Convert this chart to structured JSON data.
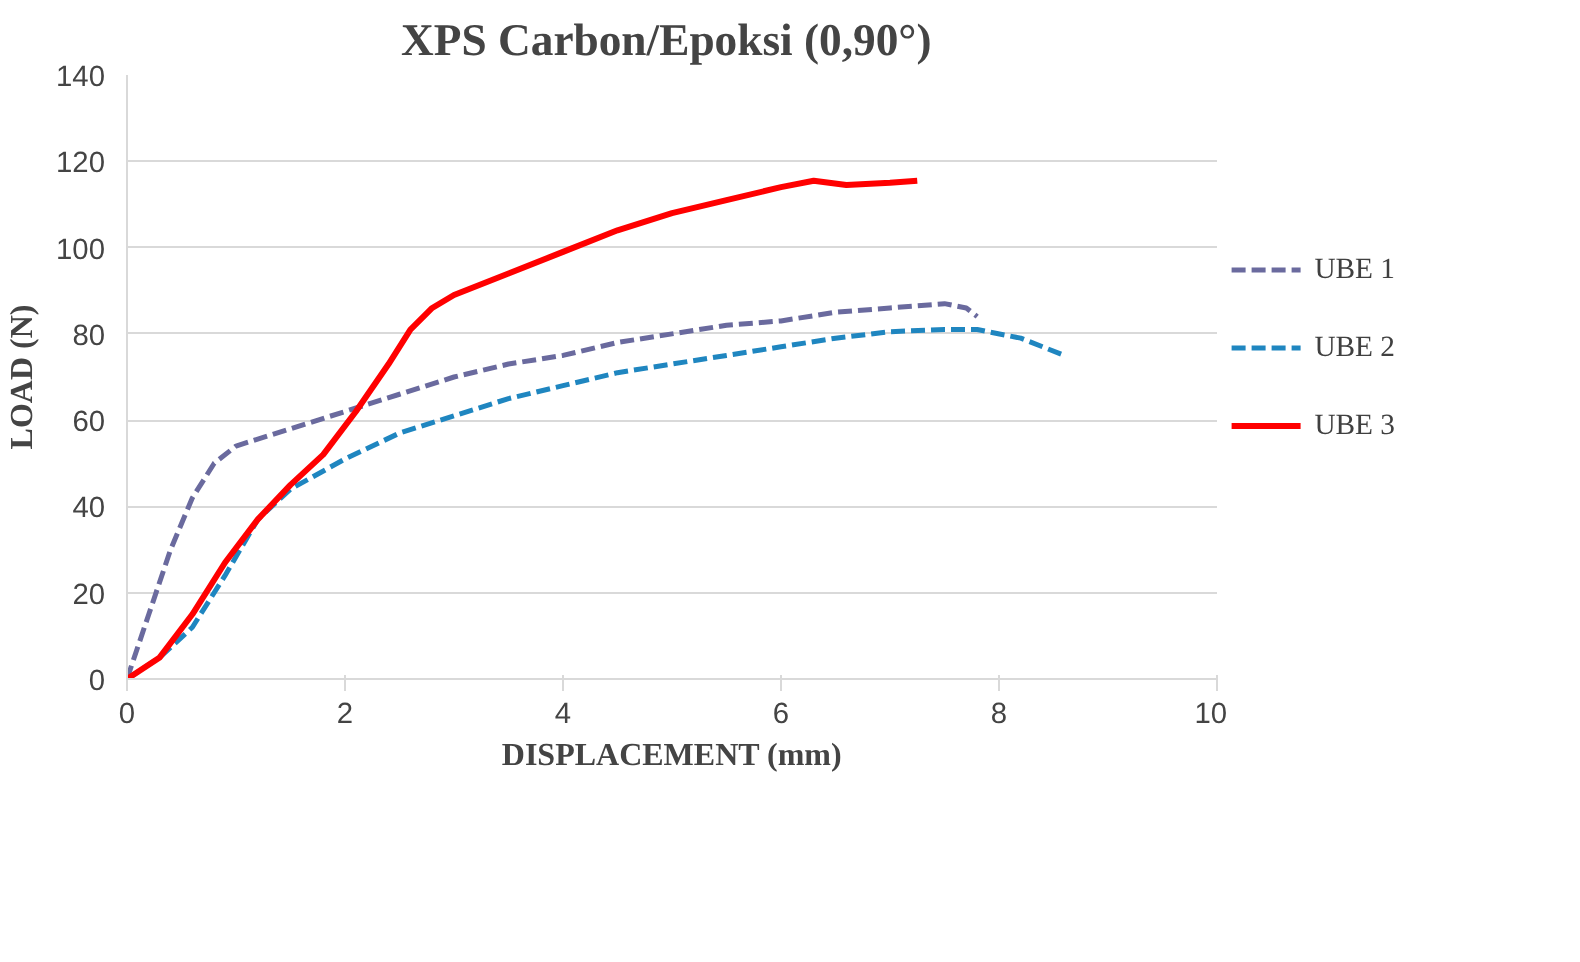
{
  "chart_data": {
    "type": "line",
    "title": "XPS Carbon/Epoksi  (0,90°)",
    "xlabel": "DISPLACEMENT (mm)",
    "ylabel": "LOAD (N)",
    "xlim": [
      0,
      10
    ],
    "xticks": [
      0,
      2,
      4,
      6,
      8,
      10
    ],
    "ylim": [
      0,
      140
    ],
    "yticks": [
      0,
      20,
      40,
      60,
      80,
      100,
      120,
      140
    ],
    "grid": "y",
    "legend": "right",
    "marker": "none",
    "series": [
      {
        "name": "UBE 1",
        "color": "#6a6a9e",
        "line_style": "dashed",
        "x": [
          0,
          0.2,
          0.4,
          0.6,
          0.8,
          1.0,
          1.5,
          2,
          2.5,
          3,
          3.5,
          4,
          4.5,
          5,
          5.5,
          6,
          6.5,
          7,
          7.5,
          7.7,
          7.8
        ],
        "values": [
          0,
          15,
          30,
          42,
          50,
          54,
          58,
          62,
          66,
          70,
          73,
          75,
          78,
          80,
          82,
          83,
          85,
          86,
          87,
          86,
          84
        ]
      },
      {
        "name": "UBE 2",
        "color": "#1f86c0",
        "line_style": "dashed",
        "x": [
          0,
          0.3,
          0.6,
          0.9,
          1.2,
          1.5,
          2,
          2.5,
          3,
          3.5,
          4,
          4.5,
          5,
          5.5,
          6,
          6.5,
          7,
          7.5,
          7.8,
          8.2,
          8.4,
          8.6
        ],
        "values": [
          0,
          5,
          12,
          24,
          37,
          44,
          51,
          57,
          61,
          65,
          68,
          71,
          73,
          75,
          77,
          79,
          80.5,
          81,
          81,
          79,
          77,
          75
        ]
      },
      {
        "name": "UBE 3",
        "color": "#ff0000",
        "line_style": "solid",
        "x": [
          0,
          0.3,
          0.6,
          0.9,
          1.2,
          1.5,
          1.8,
          2.1,
          2.4,
          2.6,
          2.8,
          3,
          3.5,
          4,
          4.5,
          5,
          5.5,
          6,
          6.3,
          6.6,
          7,
          7.25
        ],
        "values": [
          0,
          5,
          15,
          27,
          37,
          45,
          52,
          62,
          73,
          81,
          86,
          89,
          94,
          99,
          104,
          108,
          111,
          114,
          115.5,
          114.5,
          115,
          115.5
        ]
      }
    ]
  }
}
